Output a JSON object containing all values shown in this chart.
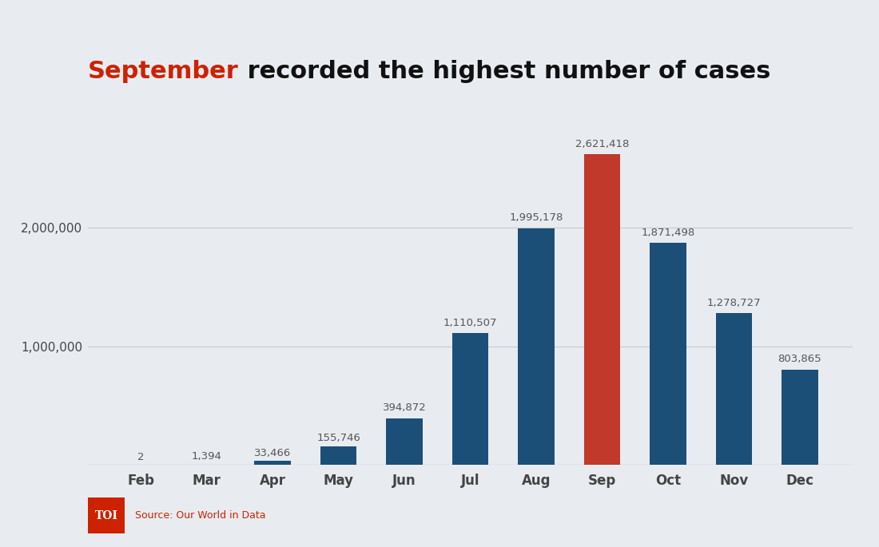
{
  "categories": [
    "Feb",
    "Mar",
    "Apr",
    "May",
    "Jun",
    "Jul",
    "Aug",
    "Sep",
    "Oct",
    "Nov",
    "Dec"
  ],
  "values": [
    2,
    1394,
    33466,
    155746,
    394872,
    1110507,
    1995178,
    2621418,
    1871498,
    1278727,
    803865
  ],
  "bar_colors": [
    "#1c4f78",
    "#1c4f78",
    "#1c4f78",
    "#1c4f78",
    "#1c4f78",
    "#1c4f78",
    "#1c4f78",
    "#c0392b",
    "#1c4f78",
    "#1c4f78",
    "#1c4f78"
  ],
  "title_part1": "September",
  "title_part2": " recorded the highest number of cases",
  "title_color1": "#cc2200",
  "title_color2": "#111111",
  "background_color": "#e8ecf0",
  "bar_label_color": "#555555",
  "axis_label_color": "#444444",
  "grid_color": "#c8c8c8",
  "ylim": [
    0,
    3000000
  ],
  "source_text": "Source: Our World in Data",
  "source_color": "#cc2200",
  "toi_bg_color": "#cc2200",
  "toi_text": "TOI",
  "value_labels": [
    "2",
    "1,394",
    "33,466",
    "155,746",
    "394,872",
    "1,110,507",
    "1,995,178",
    "2,621,418",
    "1,871,498",
    "1,278,727",
    "803,865"
  ],
  "title_fontsize": 22,
  "bar_label_fontsize": 9.5,
  "axis_tick_fontsize": 11
}
